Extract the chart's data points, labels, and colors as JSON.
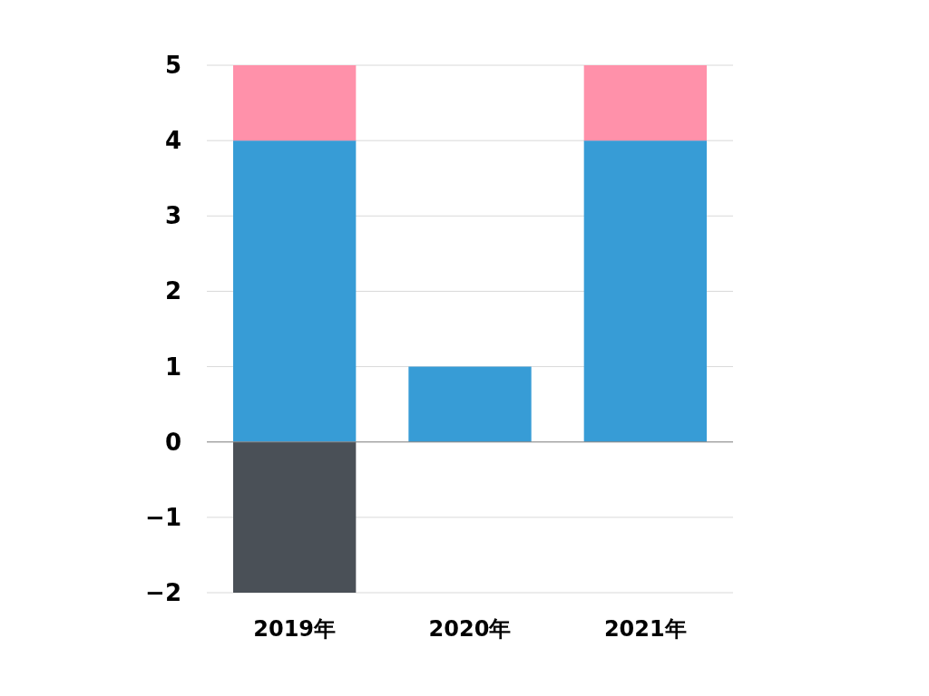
{
  "chart_data": {
    "type": "bar",
    "stacked": true,
    "categories": [
      "2019年",
      "2020年",
      "2021年"
    ],
    "series": [
      {
        "color": "#379cd6",
        "values": [
          4,
          1,
          4
        ]
      },
      {
        "color": "#ff91aa",
        "values": [
          1,
          null,
          1
        ]
      },
      {
        "color": "#4a5057",
        "values": [
          -2,
          null,
          null
        ]
      }
    ],
    "ylim": [
      -2,
      5
    ],
    "yticks": [
      -2,
      -1,
      0,
      1,
      2,
      3,
      4,
      5
    ],
    "grid": "y"
  }
}
